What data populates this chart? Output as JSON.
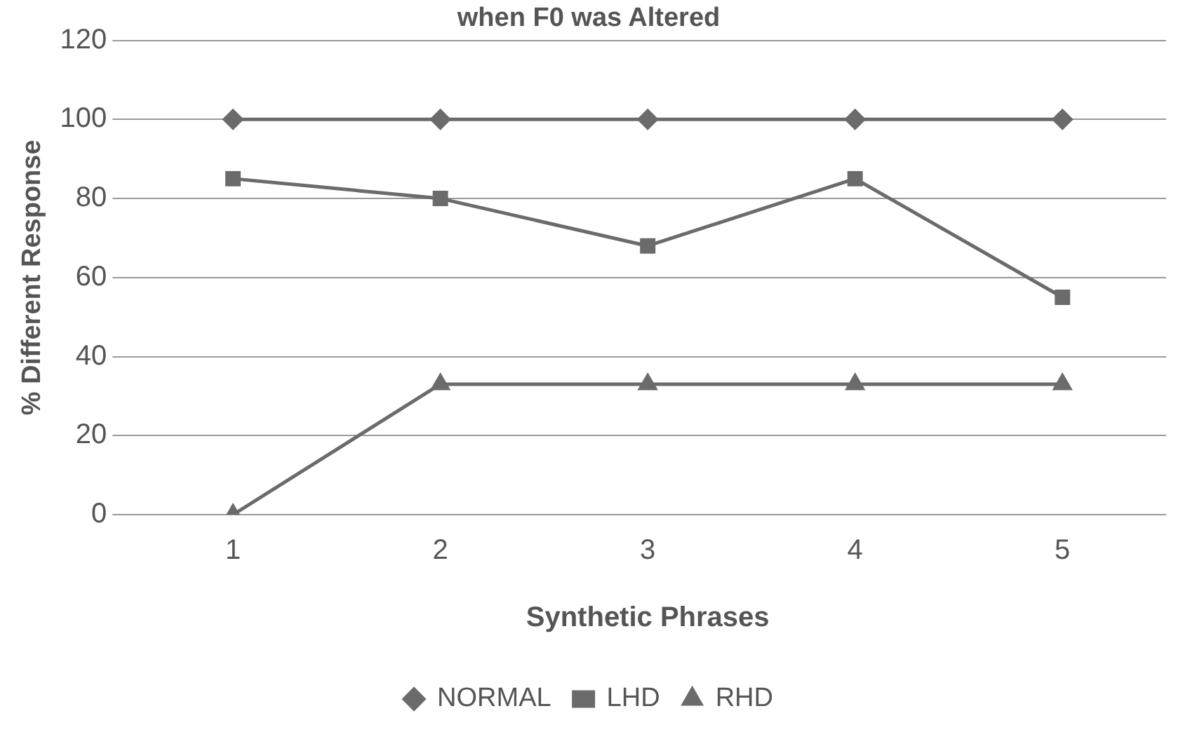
{
  "chart_data": {
    "type": "line",
    "title": "when F0 was Altered",
    "xlabel": "Synthetic Phrases",
    "ylabel": "% Different Response",
    "categories": [
      "1",
      "2",
      "3",
      "4",
      "5"
    ],
    "series": [
      {
        "name": "NORMAL",
        "color": "#6b6b6b",
        "marker": "diamond",
        "values": [
          100,
          100,
          100,
          100,
          100
        ]
      },
      {
        "name": "LHD",
        "color": "#6b6b6b",
        "marker": "square",
        "values": [
          85,
          80,
          68,
          85,
          55
        ]
      },
      {
        "name": "RHD",
        "color": "#6b6b6b",
        "marker": "triangle",
        "values": [
          0,
          33,
          33,
          33,
          33
        ]
      }
    ],
    "ylim": [
      0,
      120
    ],
    "yticks": [
      0,
      20,
      40,
      60,
      80,
      100,
      120
    ],
    "grid": "y",
    "legend": "bottom",
    "line_style": "solid"
  }
}
